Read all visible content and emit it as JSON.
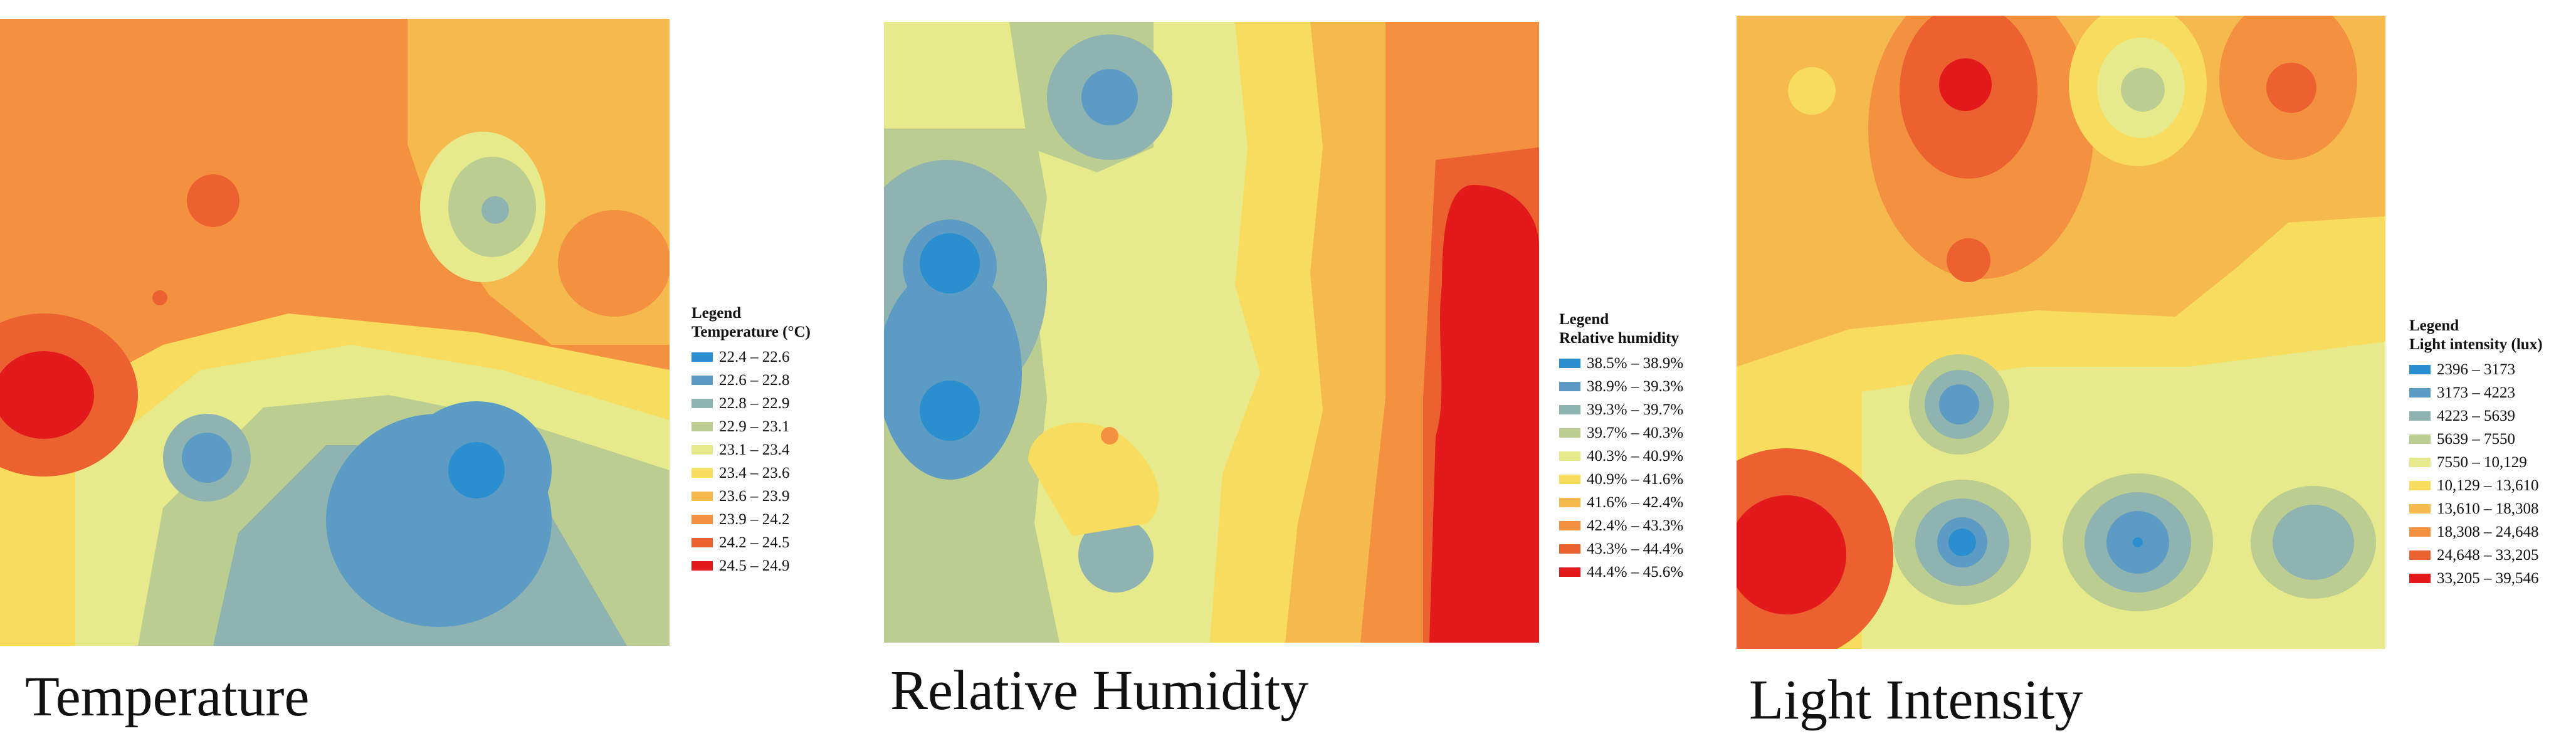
{
  "panels": [
    {
      "caption": "Temperature",
      "legend": {
        "title": "Legend",
        "subtitle": "Temperature (°C)",
        "items": [
          {
            "label": "22.4 – 22.6",
            "color": "#2b8fcf"
          },
          {
            "label": "22.6 – 22.8",
            "color": "#5c9cc4"
          },
          {
            "label": "22.8 – 22.9",
            "color": "#8fb3b0"
          },
          {
            "label": "22.9 – 23.1",
            "color": "#bccd92"
          },
          {
            "label": "23.1 – 23.4",
            "color": "#e6ea8a"
          },
          {
            "label": "23.4 – 23.6",
            "color": "#f7dc5e"
          },
          {
            "label": "23.6 – 23.9",
            "color": "#f6b94d"
          },
          {
            "label": "23.9 – 24.2",
            "color": "#f39140"
          },
          {
            "label": "24.2 – 24.5",
            "color": "#ec6130"
          },
          {
            "label": "24.5 – 24.9",
            "color": "#e31a1c"
          }
        ]
      }
    },
    {
      "caption": "Relative Humidity",
      "legend": {
        "title": "Legend",
        "subtitle": "Relative humidity",
        "items": [
          {
            "label": "38.5% – 38.9%",
            "color": "#2b8fcf"
          },
          {
            "label": "38.9% – 39.3%",
            "color": "#5c9cc4"
          },
          {
            "label": "39.3% – 39.7%",
            "color": "#8fb3b0"
          },
          {
            "label": "39.7% – 40.3%",
            "color": "#bccd92"
          },
          {
            "label": "40.3% – 40.9%",
            "color": "#e6ea8a"
          },
          {
            "label": "40.9% – 41.6%",
            "color": "#f7dc5e"
          },
          {
            "label": "41.6% – 42.4%",
            "color": "#f6b94d"
          },
          {
            "label": "42.4% – 43.3%",
            "color": "#f39140"
          },
          {
            "label": "43.3% – 44.4%",
            "color": "#ec6130"
          },
          {
            "label": "44.4% – 45.6%",
            "color": "#e31a1c"
          }
        ]
      }
    },
    {
      "caption": "Light Intensity",
      "legend": {
        "title": "Legend",
        "subtitle": "Light intensity (lux)",
        "items": [
          {
            "label": "2396 – 3173",
            "color": "#2b8fcf"
          },
          {
            "label": "3173 – 4223",
            "color": "#5c9cc4"
          },
          {
            "label": "4223 – 5639",
            "color": "#8fb3b0"
          },
          {
            "label": "5639 – 7550",
            "color": "#bccd92"
          },
          {
            "label": "7550 – 10,129",
            "color": "#e6ea8a"
          },
          {
            "label": "10,129 – 13,610",
            "color": "#f7dc5e"
          },
          {
            "label": "13,610 – 18,308",
            "color": "#f6b94d"
          },
          {
            "label": "18,308 – 24,648",
            "color": "#f39140"
          },
          {
            "label": "24,648 – 33,205",
            "color": "#ec6130"
          },
          {
            "label": "33,205 – 39,546",
            "color": "#e31a1c"
          }
        ]
      }
    }
  ]
}
